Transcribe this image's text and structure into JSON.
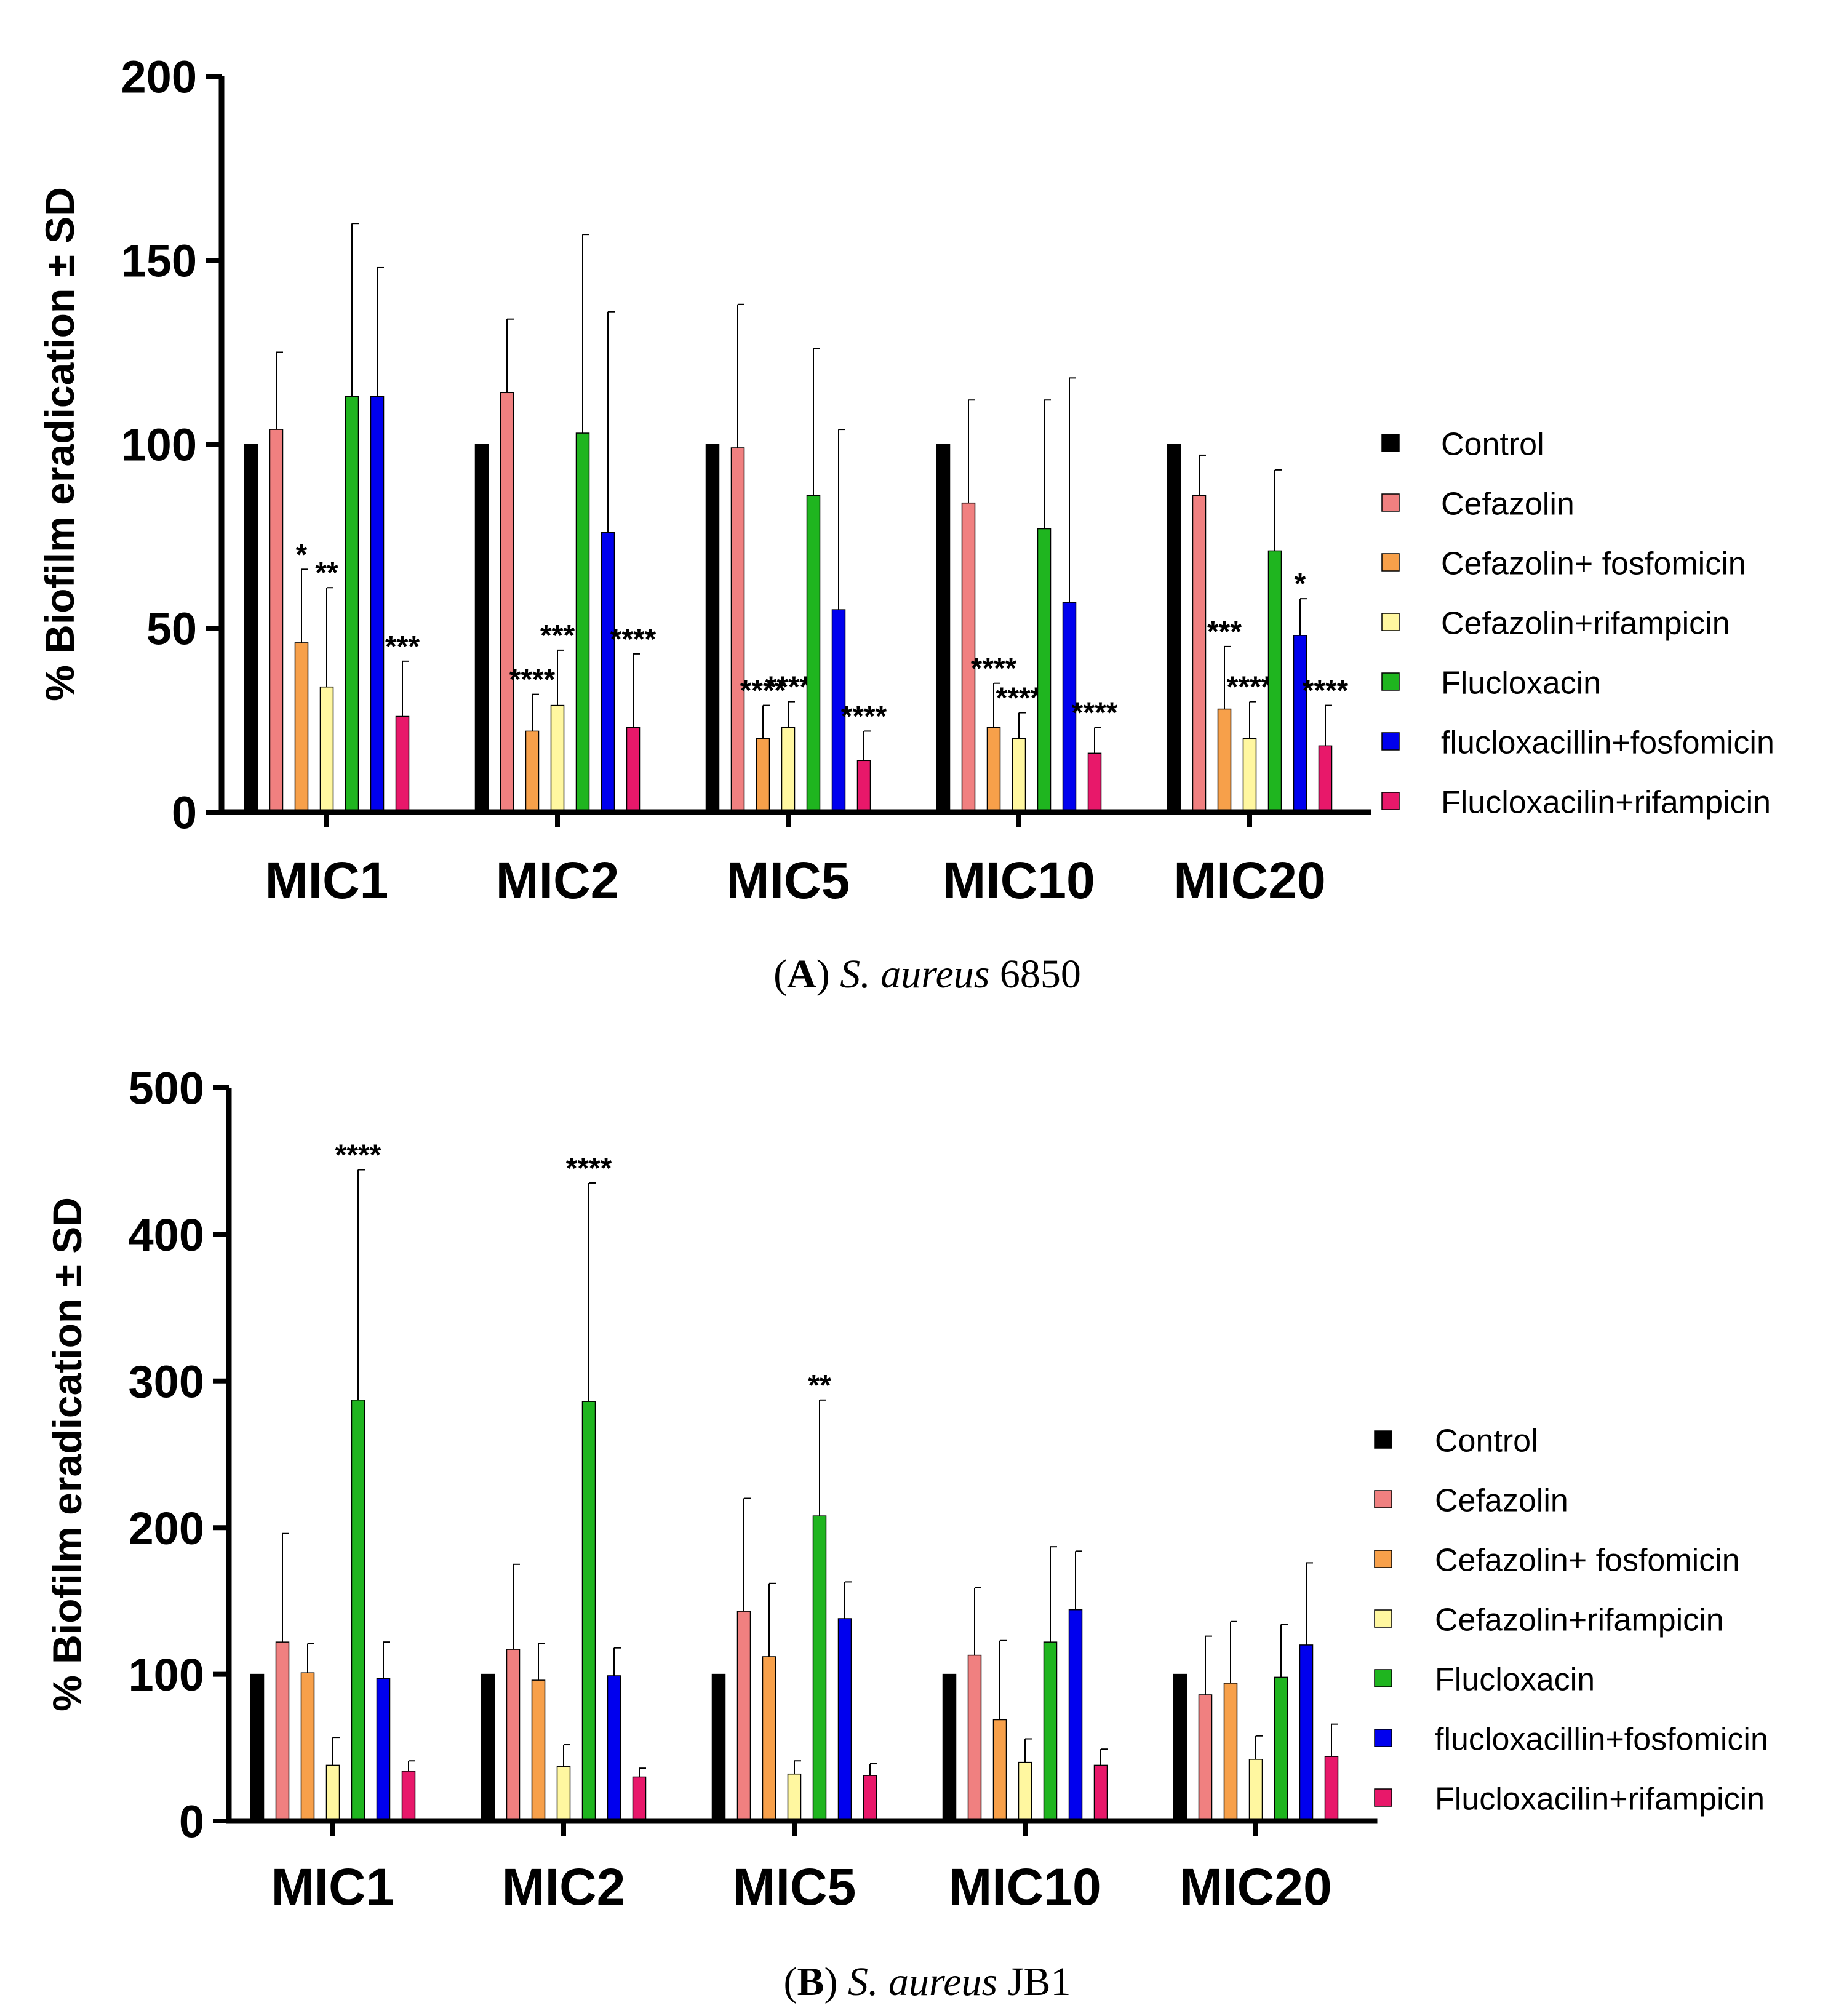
{
  "figure": {
    "panels": [
      {
        "caption_letter": "A",
        "caption_species": "S. aureus",
        "caption_strain": "6850"
      },
      {
        "caption_letter": "B",
        "caption_species": "S. aureus",
        "caption_strain": "JB1"
      }
    ]
  },
  "chart_data": [
    {
      "type": "bar",
      "ylabel": "% Biofilm eradication ± SD",
      "ylim": [
        0,
        200
      ],
      "yticks": [
        0,
        50,
        100,
        150,
        200
      ],
      "categories": [
        "MIC1",
        "MIC2",
        "MIC5",
        "MIC10",
        "MIC20"
      ],
      "legend_position": "right",
      "error_bars": "SD",
      "series": [
        {
          "name": "Control",
          "color": "#000000",
          "values": [
            100,
            100,
            100,
            100,
            100
          ],
          "sd": [
            0,
            0,
            0,
            0,
            0
          ],
          "sig": [
            "",
            "",
            "",
            "",
            ""
          ]
        },
        {
          "name": "Cefazolin",
          "color": "#f08080",
          "values": [
            104,
            114,
            99,
            84,
            86
          ],
          "sd": [
            21,
            20,
            39,
            28,
            11
          ],
          "sig": [
            "",
            "",
            "",
            "",
            ""
          ]
        },
        {
          "name": "Cefazolin+ fosfomicin",
          "color": "#f7a04a",
          "values": [
            46,
            22,
            20,
            23,
            28
          ],
          "sd": [
            20,
            10,
            9,
            12,
            17
          ],
          "sig": [
            "*",
            "****",
            "****",
            "****",
            "***"
          ]
        },
        {
          "name": "Cefazolin+rifampicin",
          "color": "#fff7a0",
          "values": [
            34,
            29,
            23,
            20,
            20
          ],
          "sd": [
            27,
            15,
            7,
            7,
            10
          ],
          "sig": [
            "**",
            "***",
            "****",
            "****",
            "****"
          ]
        },
        {
          "name": "Flucloxacin",
          "color": "#1fb51f",
          "values": [
            113,
            103,
            86,
            77,
            71
          ],
          "sd": [
            47,
            54,
            40,
            35,
            22
          ],
          "sig": [
            "",
            "",
            "",
            "",
            ""
          ]
        },
        {
          "name": "flucloxacillin+fosfomicin",
          "color": "#0000ee",
          "values": [
            113,
            76,
            55,
            57,
            48
          ],
          "sd": [
            35,
            60,
            49,
            61,
            10
          ],
          "sig": [
            "",
            "",
            "",
            "",
            "*"
          ]
        },
        {
          "name": "Flucloxacilin+rifampicin",
          "color": "#e8186a",
          "values": [
            26,
            23,
            14,
            16,
            18
          ],
          "sd": [
            15,
            20,
            8,
            7,
            11
          ],
          "sig": [
            "***",
            "****",
            "****",
            "****",
            "****"
          ]
        }
      ]
    },
    {
      "type": "bar",
      "ylabel": "% Biofilm eradication ± SD",
      "ylim": [
        0,
        500
      ],
      "yticks": [
        0,
        100,
        200,
        300,
        400,
        500
      ],
      "categories": [
        "MIC1",
        "MIC2",
        "MIC5",
        "MIC10",
        "MIC20"
      ],
      "legend_position": "right",
      "error_bars": "SD",
      "series": [
        {
          "name": "Control",
          "color": "#000000",
          "values": [
            100,
            100,
            100,
            100,
            100
          ],
          "sd": [
            0,
            0,
            0,
            0,
            0
          ],
          "sig": [
            "",
            "",
            "",
            "",
            ""
          ]
        },
        {
          "name": "Cefazolin",
          "color": "#f08080",
          "values": [
            122,
            117,
            143,
            113,
            86
          ],
          "sd": [
            74,
            58,
            77,
            46,
            40
          ],
          "sig": [
            "",
            "",
            "",
            "",
            ""
          ]
        },
        {
          "name": "Cefazolin+ fosfomicin",
          "color": "#f7a04a",
          "values": [
            101,
            96,
            112,
            69,
            94
          ],
          "sd": [
            20,
            25,
            50,
            54,
            42
          ],
          "sig": [
            "",
            "",
            "",
            "",
            ""
          ]
        },
        {
          "name": "Cefazolin+rifampicin",
          "color": "#fff7a0",
          "values": [
            38,
            37,
            32,
            40,
            42
          ],
          "sd": [
            19,
            15,
            9,
            16,
            16
          ],
          "sig": [
            "",
            "",
            "",
            "",
            ""
          ]
        },
        {
          "name": "Flucloxacin",
          "color": "#1fb51f",
          "values": [
            287,
            286,
            208,
            122,
            98
          ],
          "sd": [
            157,
            149,
            79,
            65,
            36
          ],
          "sig": [
            "****",
            "****",
            "**",
            "",
            ""
          ]
        },
        {
          "name": "flucloxacillin+fosfomicin",
          "color": "#0000ee",
          "values": [
            97,
            99,
            138,
            144,
            120
          ],
          "sd": [
            25,
            19,
            25,
            40,
            56
          ],
          "sig": [
            "",
            "",
            "",
            "",
            ""
          ]
        },
        {
          "name": "Flucloxacilin+rifampicin",
          "color": "#e8186a",
          "values": [
            34,
            30,
            31,
            38,
            44
          ],
          "sd": [
            7,
            6,
            8,
            11,
            22
          ],
          "sig": [
            "",
            "",
            "",
            "",
            ""
          ]
        }
      ]
    }
  ]
}
